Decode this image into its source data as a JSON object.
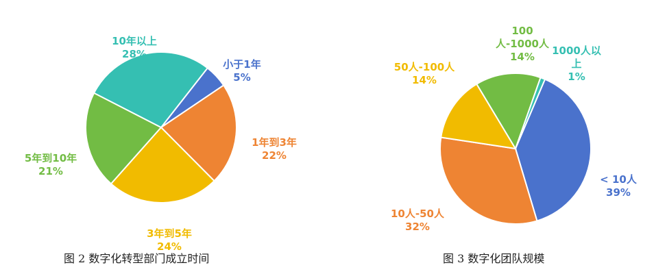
{
  "chart_data": [
    {
      "type": "pie",
      "title": "图 2  数字化转型部门成立时间",
      "colors": [
        "#4A72CC",
        "#EE8433",
        "#F1BB00",
        "#72BC44",
        "#35BFB2"
      ],
      "slices": [
        {
          "label": "小于1年",
          "value": 5,
          "value_label": "5%"
        },
        {
          "label": "1年到3年",
          "value": 22,
          "value_label": "22%"
        },
        {
          "label": "3年到5年",
          "value": 24,
          "value_label": "24%"
        },
        {
          "label": "5年到10年",
          "value": 21,
          "value_label": "21%"
        },
        {
          "label": "10年以上",
          "value": 28,
          "value_label": "28%"
        }
      ]
    },
    {
      "type": "pie",
      "title": "图 3  数字化团队规模",
      "colors": [
        "#4A72CC",
        "#EE8433",
        "#F1BB00",
        "#72BC44",
        "#35BFB2"
      ],
      "slices": [
        {
          "label": "< 10人",
          "value": 39,
          "value_label": "39%"
        },
        {
          "label": "10人-50人",
          "value": 32,
          "value_label": "32%"
        },
        {
          "label": "50人-100人",
          "value": 14,
          "value_label": "14%"
        },
        {
          "label": "100人-1000人",
          "value": 14,
          "value_label": "14%"
        },
        {
          "label": "1000人以上",
          "value": 1,
          "value_label": "1%"
        }
      ]
    }
  ]
}
